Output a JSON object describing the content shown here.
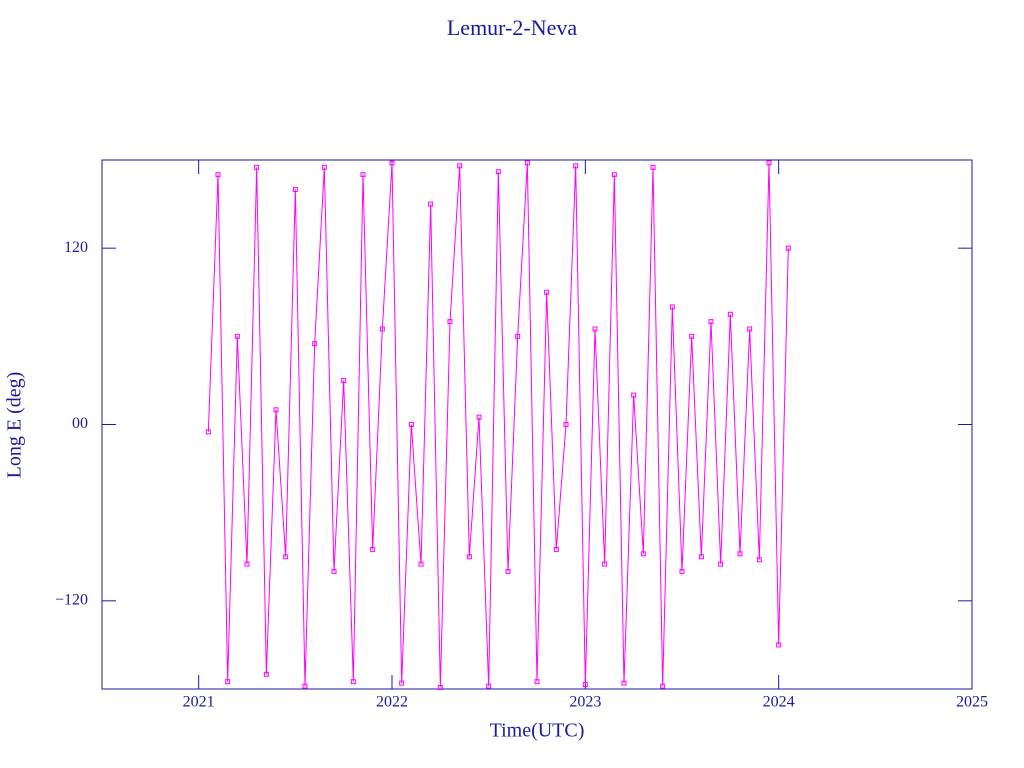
{
  "chart_data": {
    "type": "line",
    "title": "Lemur-2-Neva",
    "xlabel": "Time(UTC)",
    "ylabel": "Long E (deg)",
    "x": [
      2021.05,
      2021.1,
      2021.15,
      2021.2,
      2021.25,
      2021.3,
      2021.35,
      2021.4,
      2021.45,
      2021.5,
      2021.55,
      2021.6,
      2021.65,
      2021.7,
      2021.75,
      2021.8,
      2021.85,
      2021.9,
      2021.95,
      2022.0,
      2022.05,
      2022.1,
      2022.15,
      2022.2,
      2022.25,
      2022.3,
      2022.35,
      2022.4,
      2022.45,
      2022.5,
      2022.55,
      2022.6,
      2022.65,
      2022.7,
      2022.75,
      2022.8,
      2022.85,
      2022.9,
      2022.95,
      2023.0,
      2023.05,
      2023.1,
      2023.15,
      2023.2,
      2023.25,
      2023.3,
      2023.35,
      2023.4,
      2023.45,
      2023.5,
      2023.55,
      2023.6,
      2023.65,
      2023.7,
      2023.75,
      2023.8,
      2023.85,
      2023.9,
      2023.95,
      2024.0,
      2024.05
    ],
    "series": [
      {
        "color": "#ff00ff",
        "values": [
          -5,
          170,
          -175,
          60,
          -95,
          175,
          -170,
          10,
          -90,
          160,
          -178,
          55,
          175,
          -100,
          30,
          -175,
          170,
          -85,
          65,
          178,
          -176,
          0,
          -95,
          150,
          -179,
          70,
          176,
          -90,
          5,
          -178,
          172,
          -100,
          60,
          178,
          -175,
          90,
          -85,
          0,
          176,
          -177,
          65,
          -95,
          170,
          -176,
          20,
          -88,
          175,
          -178,
          80,
          -100,
          60,
          -90,
          70,
          -95,
          75,
          -88,
          65,
          -92,
          178,
          -150,
          120
        ]
      }
    ],
    "xlim": [
      2020.5,
      2025
    ],
    "ylim": [
      -180,
      180
    ],
    "xticks": [
      2021,
      2022,
      2023,
      2024,
      2025
    ],
    "yticks": [
      {
        "value": -120,
        "label": "−120"
      },
      {
        "value": 0,
        "label": "00"
      },
      {
        "value": 120,
        "label": "120"
      }
    ],
    "axis_color": "#1a1aa0"
  }
}
